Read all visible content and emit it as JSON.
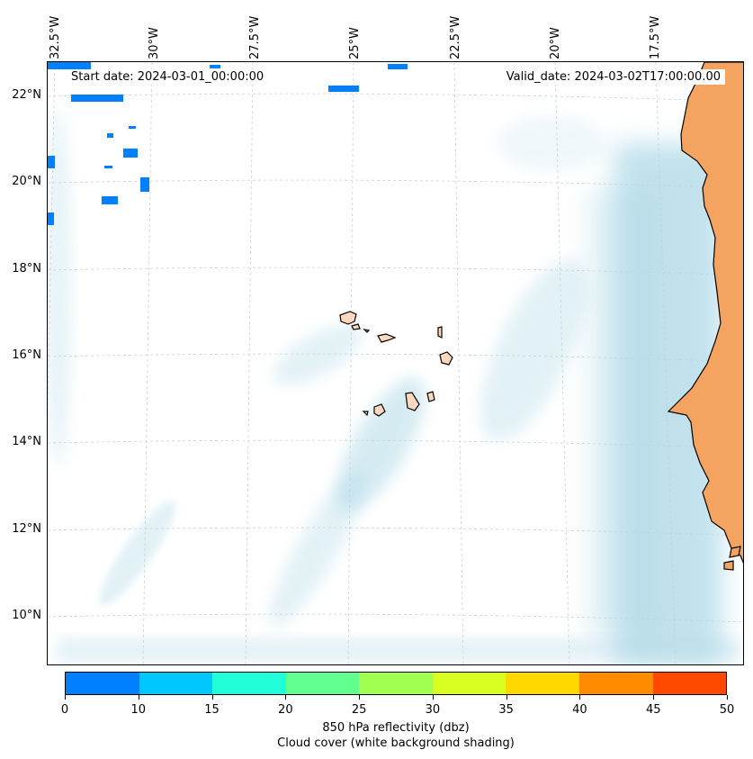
{
  "map": {
    "start_date": "Start date: 2024-03-01_00:00:00",
    "valid_date": "Valid_date: 2024-03-02T17:00:00.00",
    "lon_labels": [
      "32.5°W",
      "30°W",
      "27.5°W",
      "25°W",
      "22.5°W",
      "20°W",
      "17.5°W"
    ],
    "lat_labels": [
      "22°N",
      "20°N",
      "18°N",
      "16°N",
      "14°N",
      "12°N",
      "10°N"
    ],
    "land_color": "#f4a460",
    "cloud_color": "#add8e6",
    "reflectivity_color": "#0080ff"
  },
  "colorbar": {
    "ticks": [
      "0",
      "10",
      "15",
      "20",
      "25",
      "30",
      "35",
      "40",
      "45",
      "50"
    ],
    "colors": [
      "#0080ff",
      "#00c8ff",
      "#20ffd8",
      "#60ff90",
      "#a0ff50",
      "#d8ff20",
      "#ffd800",
      "#ff8c00",
      "#ff4800"
    ],
    "label": "850 hPa reflectivity (dbz)",
    "sublabel": "Cloud cover (white background shading)"
  }
}
